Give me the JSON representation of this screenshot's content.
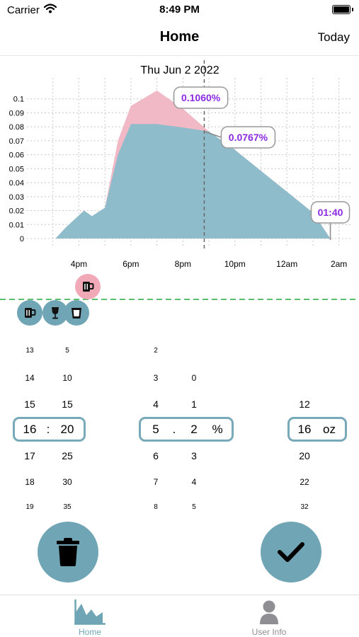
{
  "status_bar": {
    "carrier": "Carrier",
    "time": "8:49 PM"
  },
  "nav": {
    "title": "Home",
    "right_button": "Today"
  },
  "chart_data": {
    "type": "area",
    "title": "Thu Jun 2 2022",
    "x_tick_labels": [
      "4pm",
      "6pm",
      "8pm",
      "10pm",
      "12am",
      "2am"
    ],
    "x_hours": [
      15.1,
      15.5,
      16.2,
      16.5,
      17.0,
      17.5,
      18.0,
      19.0,
      20.0,
      21.0,
      22.0,
      23.0,
      24.0,
      25.0,
      25.67
    ],
    "bac_estimate": [
      0.0,
      0.008,
      0.02,
      0.016,
      0.022,
      0.06,
      0.082,
      0.082,
      0.0795,
      0.0767,
      0.0635,
      0.0485,
      0.0335,
      0.0185,
      0.0
    ],
    "bac_peak_band": [
      0.0,
      0.008,
      0.02,
      0.016,
      0.022,
      0.07,
      0.095,
      0.106,
      0.093,
      0.0767,
      0.0635,
      0.0485,
      0.0335,
      0.0185,
      0.0
    ],
    "ylim": [
      0,
      0.11
    ],
    "xlim": [
      14.0,
      26.5
    ],
    "y_ticks": [
      "0",
      "0.01",
      "0.02",
      "0.03",
      "0.04",
      "0.05",
      "0.06",
      "0.07",
      "0.08",
      "0.09",
      "0.1"
    ],
    "now_hour": 20.82,
    "annotations": {
      "peak": "0.1060%",
      "current": "0.0767%",
      "sober_time": "01:40"
    },
    "colors": {
      "area": "#8fbccb",
      "peak_band": "#f1b9c5",
      "annotation_text": "#8a2be2",
      "now_line": "#666666"
    }
  },
  "drinks": {
    "planned": [
      {
        "icon": "beer-mug-icon",
        "hour": 16.35
      }
    ],
    "consumed": [
      {
        "icon": "beer-mug-icon",
        "hour": 14.1
      },
      {
        "icon": "wine-glass-icon",
        "hour": 15.1
      },
      {
        "icon": "shot-glass-icon",
        "hour": 15.9
      }
    ],
    "colors": {
      "planned": "#f1a9b7",
      "consumed": "#6fa5b4",
      "divider": "#5cbf6b"
    }
  },
  "picker": {
    "hour": {
      "above3": "13",
      "above2": "14",
      "above1": "15",
      "selected": "16",
      "below1": "17",
      "below2": "18",
      "below3": "19"
    },
    "minute": {
      "above3": "5",
      "above2": "10",
      "above1": "15",
      "selected": "20",
      "below1": "25",
      "below2": "30",
      "below3": "35"
    },
    "time_separator": ":",
    "percent_int": {
      "above3": "2",
      "above2": "3",
      "above1": "4",
      "selected": "5",
      "below1": "6",
      "below2": "7",
      "below3": "8"
    },
    "percent_dec": {
      "above2": "0",
      "above1": "1",
      "selected": "2",
      "below1": "3",
      "below2": "4",
      "below3": "5"
    },
    "decimal_point": ".",
    "percent_unit": "%",
    "volume": {
      "above1": "12",
      "selected": "16",
      "below1": "20",
      "below2": "22",
      "below3": "32"
    },
    "volume_unit": "oz"
  },
  "actions": {
    "delete_icon": "trash-icon",
    "confirm_icon": "checkmark-icon",
    "color": "#6fa5b4"
  },
  "tabs": [
    {
      "label": "Home",
      "icon": "area-chart-icon",
      "active": true
    },
    {
      "label": "User Info",
      "icon": "person-icon",
      "active": false
    }
  ],
  "tab_colors": {
    "active": "#6fa5b4",
    "inactive": "#8e8e93"
  }
}
